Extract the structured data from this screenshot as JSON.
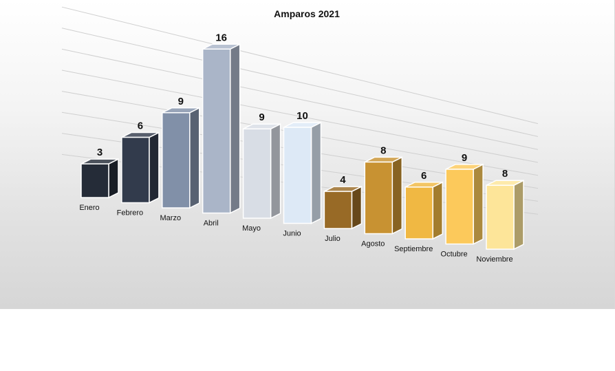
{
  "chart_data": {
    "type": "bar",
    "title": "Amparos 2021",
    "categories": [
      "Enero",
      "Febrero",
      "Marzo",
      "Abril",
      "Mayo",
      "Junio",
      "Julio",
      "Agosto",
      "Septiembre",
      "Octubre",
      "Noviembre"
    ],
    "values": [
      3,
      6,
      9,
      16,
      9,
      10,
      4,
      8,
      6,
      9,
      8
    ],
    "ylim": [
      0,
      16
    ],
    "grid": true,
    "colors": [
      "#252c38",
      "#323b4c",
      "#8190a8",
      "#aab5c8",
      "#d8dde5",
      "#dde9f6",
      "#986a26",
      "#c89232",
      "#f0b843",
      "#fcc95b",
      "#fde599"
    ],
    "xlabel": "",
    "ylabel": ""
  }
}
